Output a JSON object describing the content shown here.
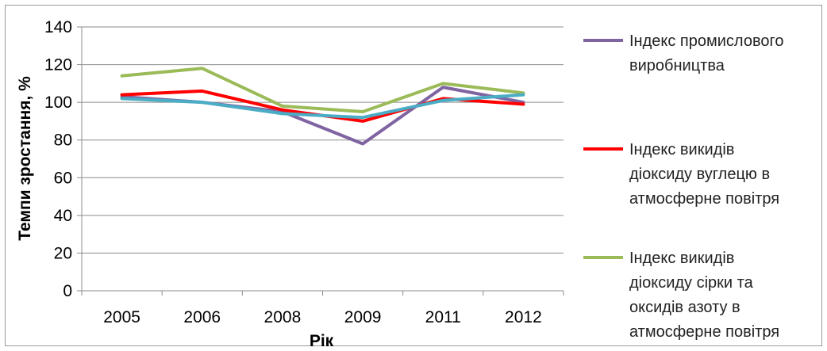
{
  "chart_data": {
    "type": "line",
    "title": "",
    "xlabel": "Рік",
    "ylabel": "Темпи зростання, %",
    "categories": [
      "2005",
      "2006",
      "2008",
      "2009",
      "2011",
      "2012"
    ],
    "ylim": [
      0,
      140
    ],
    "yticks": [
      0,
      20,
      40,
      60,
      80,
      100,
      120,
      140
    ],
    "grid": true,
    "legend_position": "right",
    "series": [
      {
        "name": "Індекс промислового виробництва",
        "legend_lines": [
          "Індекс промислового",
          "виробництва"
        ],
        "color": "#8064a2",
        "values": [
          103,
          100,
          95,
          78,
          108,
          100
        ]
      },
      {
        "name": "Індекс  викидів діоксиду вуглецю в атмосферне повітря",
        "legend_lines": [
          "Індекс  викидів",
          "діоксиду вуглецю в",
          "атмосферне повітря"
        ],
        "color": "#ff0000",
        "values": [
          104,
          106,
          96,
          90,
          102,
          99
        ]
      },
      {
        "name": "Індекс викидів діоксиду сірки та оксидів азоту в атмосферне повітря",
        "legend_lines": [
          "Індекс викидів",
          "діоксиду сірки та",
          "оксидів азоту в",
          "атмосферне повітря"
        ],
        "color": "#9bbb59",
        "values": [
          114,
          118,
          98,
          95,
          110,
          105
        ]
      },
      {
        "name": "",
        "color": "#4bacc6",
        "values": [
          102,
          100,
          94,
          92,
          101,
          104
        ]
      }
    ]
  }
}
